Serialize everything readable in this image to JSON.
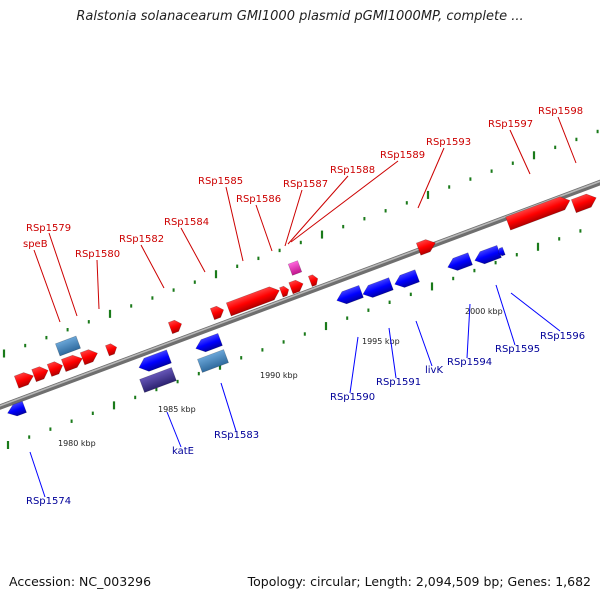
{
  "title": "Ralstonia solanacearum GMI1000 plasmid pGMI1000MP, complete ...",
  "footer": {
    "accession": "Accession: NC_003296",
    "stats": "Topology: circular; Length: 2,094,509 bp; Genes: 1,682"
  },
  "colors": {
    "forward_gene": "#ff0000",
    "reverse_gene": "#0000ff",
    "forward_label": "#cc0000",
    "reverse_label": "#000099",
    "tick": "#1a7a1a",
    "backbone": "#8a8a8a",
    "pink_feature": "#ff33cc",
    "steelblue_feature": "#4f8fc4",
    "indigo_feature": "#4b3c9a"
  },
  "scale": {
    "unit": "kbp",
    "ticks": [
      "1980 kbp",
      "1985 kbp",
      "1990 kbp",
      "1995 kbp",
      "2000 kbp"
    ]
  },
  "forward_labels": [
    "speB",
    "RSp1579",
    "RSp1580",
    "RSp1582",
    "RSp1584",
    "RSp1585",
    "RSp1586",
    "RSp1587",
    "RSp1588",
    "RSp1589",
    "RSp1593",
    "RSp1597",
    "RSp1598"
  ],
  "reverse_labels": [
    "RSp1574",
    "katE",
    "RSp1583",
    "RSp1590",
    "RSp1591",
    "livK",
    "RSp1594",
    "RSp1595",
    "RSp1596"
  ]
}
